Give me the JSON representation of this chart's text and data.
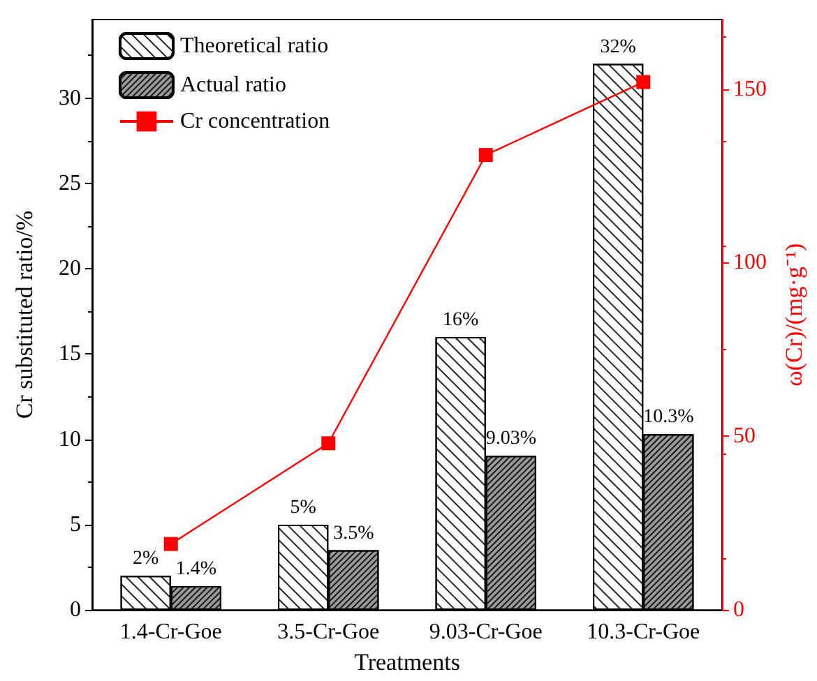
{
  "chart_data": {
    "type": "bar",
    "xlabel": "Treatments",
    "ylabel": "Cr substituted ratio/%",
    "y2label": "ω(Cr)/(mg·g⁻¹)",
    "categories": [
      "1.4-Cr-Goe",
      "3.5-Cr-Goe",
      "9.03-Cr-Goe",
      "10.3-Cr-Goe"
    ],
    "series": [
      {
        "name": "Theoretical ratio",
        "color": "#ffffff",
        "values": [
          2,
          5,
          16,
          32
        ],
        "value_labels": [
          "2%",
          "5%",
          "16%",
          "32%"
        ]
      },
      {
        "name": "Actual ratio",
        "color": "#9a9a9a",
        "values": [
          1.4,
          3.5,
          9.03,
          10.3
        ],
        "value_labels": [
          "1.4%",
          "3.5%",
          "9.03%",
          "10.3%"
        ]
      },
      {
        "name": "Cr concentration",
        "type": "line",
        "axis": "y2",
        "color": "#ff0000",
        "values": [
          19,
          48,
          131,
          152
        ],
        "marker": "square"
      }
    ],
    "ylim": [
      0,
      34.6
    ],
    "yticks": [
      0,
      5,
      10,
      15,
      20,
      25,
      30
    ],
    "y2lim": [
      0,
      170
    ],
    "y2ticks": [
      0,
      50,
      100,
      150
    ],
    "grid": false,
    "legend": "top left"
  }
}
